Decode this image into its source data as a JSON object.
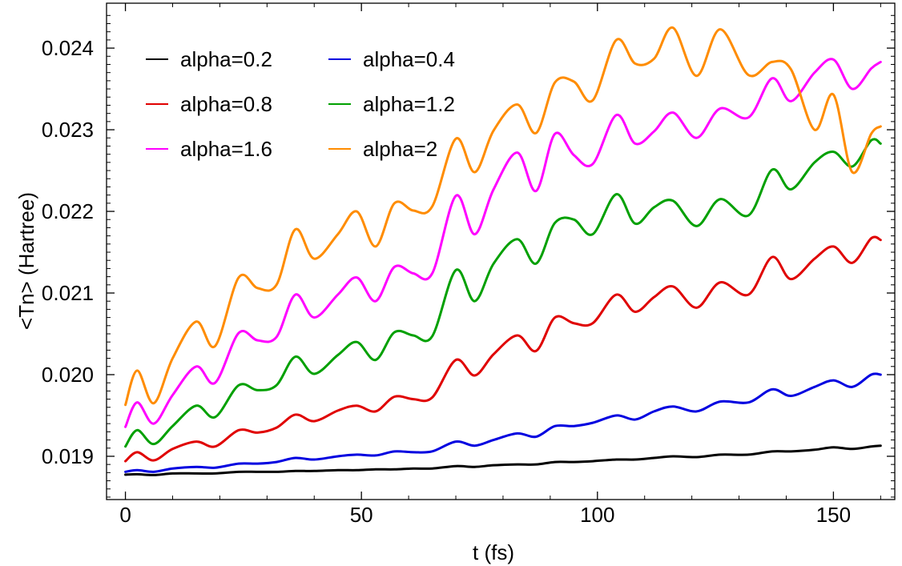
{
  "chart_data": {
    "type": "line",
    "title": "",
    "xlabel": "t (fs)",
    "ylabel": "<Tn> (Hartree)",
    "xlim": [
      -4,
      163
    ],
    "ylim": [
      0.01847,
      0.02455
    ],
    "x_ticks": [
      0,
      50,
      100,
      150
    ],
    "y_ticks": [
      0.019,
      0.02,
      0.021,
      0.022,
      0.023,
      0.024
    ],
    "x_tick_labels": [
      "0",
      "50",
      "100",
      "150"
    ],
    "y_tick_labels": [
      "0.019",
      "0.020",
      "0.021",
      "0.022",
      "0.023",
      "0.024"
    ],
    "grid": false,
    "legend_position": "top-left",
    "x": [
      0,
      2.5,
      6,
      10,
      15,
      19,
      24,
      28,
      32,
      36,
      40,
      45,
      49,
      53,
      57,
      61,
      65,
      70,
      74,
      78,
      83,
      87,
      91,
      95,
      99,
      104,
      108,
      112,
      116,
      121,
      126,
      132,
      137,
      141,
      146,
      150,
      154,
      158,
      160
    ],
    "series": [
      {
        "name": "alpha=0.2",
        "color": "#000000",
        "values": [
          0.018775,
          0.01878,
          0.01877,
          0.01879,
          0.01879,
          0.01879,
          0.01881,
          0.01881,
          0.01881,
          0.01882,
          0.01882,
          0.01883,
          0.01883,
          0.01884,
          0.01884,
          0.01885,
          0.01885,
          0.01888,
          0.01887,
          0.01889,
          0.0189,
          0.0189,
          0.01893,
          0.01893,
          0.01894,
          0.01896,
          0.01896,
          0.01898,
          0.019,
          0.01899,
          0.01902,
          0.01902,
          0.01906,
          0.01906,
          0.01908,
          0.01911,
          0.01909,
          0.01912,
          0.01913
        ]
      },
      {
        "name": "alpha=0.4",
        "color": "#0000e0",
        "values": [
          0.01881,
          0.01883,
          0.01881,
          0.01885,
          0.01887,
          0.01886,
          0.01891,
          0.01891,
          0.01893,
          0.01898,
          0.01896,
          0.019,
          0.01902,
          0.01901,
          0.01906,
          0.01905,
          0.01906,
          0.01918,
          0.01913,
          0.0192,
          0.01928,
          0.01924,
          0.01937,
          0.01937,
          0.01941,
          0.0195,
          0.01945,
          0.01955,
          0.01961,
          0.01955,
          0.01967,
          0.01966,
          0.01982,
          0.01974,
          0.01985,
          0.01993,
          0.01985,
          0.02,
          0.02
        ]
      },
      {
        "name": "alpha=0.8",
        "color": "#e00000",
        "values": [
          0.01894,
          0.01905,
          0.01895,
          0.01909,
          0.01918,
          0.01912,
          0.01932,
          0.01929,
          0.01935,
          0.01951,
          0.01943,
          0.01956,
          0.01962,
          0.01955,
          0.01973,
          0.0197,
          0.01972,
          0.02018,
          0.01999,
          0.02025,
          0.02048,
          0.02029,
          0.0207,
          0.02063,
          0.02063,
          0.02098,
          0.02077,
          0.02095,
          0.02108,
          0.02082,
          0.02113,
          0.02098,
          0.02144,
          0.02117,
          0.02142,
          0.02157,
          0.02137,
          0.02167,
          0.02165
        ]
      },
      {
        "name": "alpha=1.2",
        "color": "#00a000",
        "values": [
          0.01912,
          0.01932,
          0.01915,
          0.01937,
          0.01962,
          0.01948,
          0.01987,
          0.01981,
          0.01987,
          0.02022,
          0.02001,
          0.02024,
          0.0204,
          0.02018,
          0.02052,
          0.02048,
          0.02047,
          0.02128,
          0.0209,
          0.02136,
          0.02166,
          0.02136,
          0.02186,
          0.0219,
          0.02172,
          0.02221,
          0.02185,
          0.02205,
          0.02213,
          0.02182,
          0.02215,
          0.02195,
          0.02251,
          0.02227,
          0.0226,
          0.02273,
          0.02255,
          0.02287,
          0.02283
        ]
      },
      {
        "name": "alpha=1.6",
        "color": "#ff00ff",
        "values": [
          0.01936,
          0.01966,
          0.0194,
          0.01975,
          0.0201,
          0.0199,
          0.02051,
          0.02042,
          0.02046,
          0.02098,
          0.0207,
          0.02098,
          0.02119,
          0.0209,
          0.02132,
          0.02124,
          0.02124,
          0.02219,
          0.02172,
          0.02227,
          0.02272,
          0.02225,
          0.02295,
          0.02269,
          0.02258,
          0.02318,
          0.02283,
          0.02298,
          0.02321,
          0.0229,
          0.02326,
          0.02315,
          0.02363,
          0.02335,
          0.0237,
          0.02386,
          0.0235,
          0.02375,
          0.02383
        ]
      },
      {
        "name": "alpha=2",
        "color": "#ff8c00",
        "values": [
          0.01963,
          0.02005,
          0.01965,
          0.0202,
          0.02065,
          0.02035,
          0.02119,
          0.02106,
          0.0211,
          0.02178,
          0.02142,
          0.02172,
          0.022,
          0.02157,
          0.0221,
          0.02201,
          0.02206,
          0.02289,
          0.02248,
          0.02299,
          0.02331,
          0.02296,
          0.02358,
          0.02359,
          0.02336,
          0.0241,
          0.02381,
          0.02387,
          0.02425,
          0.02366,
          0.02423,
          0.02367,
          0.02383,
          0.02374,
          0.023,
          0.02343,
          0.02248,
          0.02295,
          0.02304
        ]
      }
    ]
  }
}
